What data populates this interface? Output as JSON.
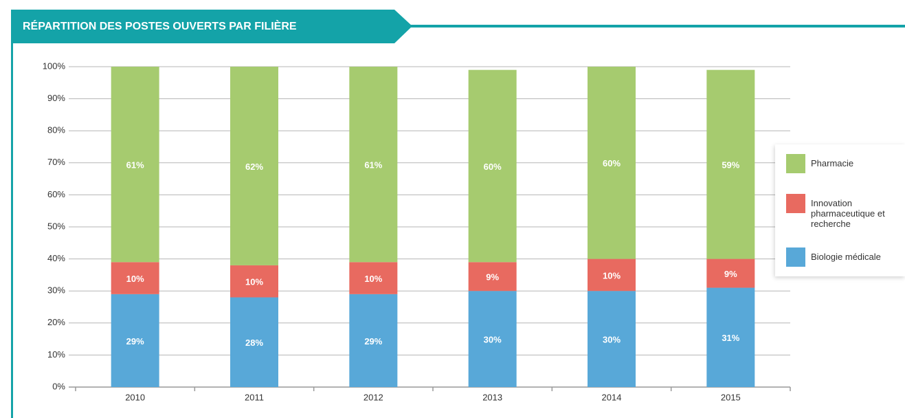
{
  "chart_data": {
    "type": "stacked_bar",
    "title": "RÉPARTITION DES POSTES OUVERTS PAR FILIÈRE",
    "categories": [
      "2010",
      "2011",
      "2012",
      "2013",
      "2014",
      "2015"
    ],
    "series": [
      {
        "name": "Biologie médicale",
        "color": "#58a8d8",
        "values": [
          29,
          28,
          29,
          30,
          30,
          31
        ],
        "value_labels": [
          "29%",
          "28%",
          "29%",
          "30%",
          "30%",
          "31%"
        ]
      },
      {
        "name": "Innovation pharmaceutique et recherche",
        "color": "#e86a60",
        "values": [
          10,
          10,
          10,
          9,
          10,
          9
        ],
        "value_labels": [
          "10%",
          "10%",
          "10%",
          "9%",
          "10%",
          "9%"
        ]
      },
      {
        "name": "Pharmacie",
        "color": "#a6cb6f",
        "values": [
          61,
          62,
          61,
          60,
          60,
          59
        ],
        "value_labels": [
          "61%",
          "62%",
          "61%",
          "60%",
          "60%",
          "59%"
        ]
      }
    ],
    "ylim": [
      0,
      100
    ],
    "yticks": [
      {
        "value": 0,
        "label": "0%"
      },
      {
        "value": 10,
        "label": "10%"
      },
      {
        "value": 20,
        "label": "20%"
      },
      {
        "value": 30,
        "label": "30%"
      },
      {
        "value": 40,
        "label": "40%"
      },
      {
        "value": 50,
        "label": "50%"
      },
      {
        "value": 60,
        "label": "60%"
      },
      {
        "value": 70,
        "label": "70%"
      },
      {
        "value": 80,
        "label": "80%"
      },
      {
        "value": 90,
        "label": "90%"
      },
      {
        "value": 100,
        "label": "100%"
      }
    ],
    "grid": true,
    "legend": "right"
  }
}
